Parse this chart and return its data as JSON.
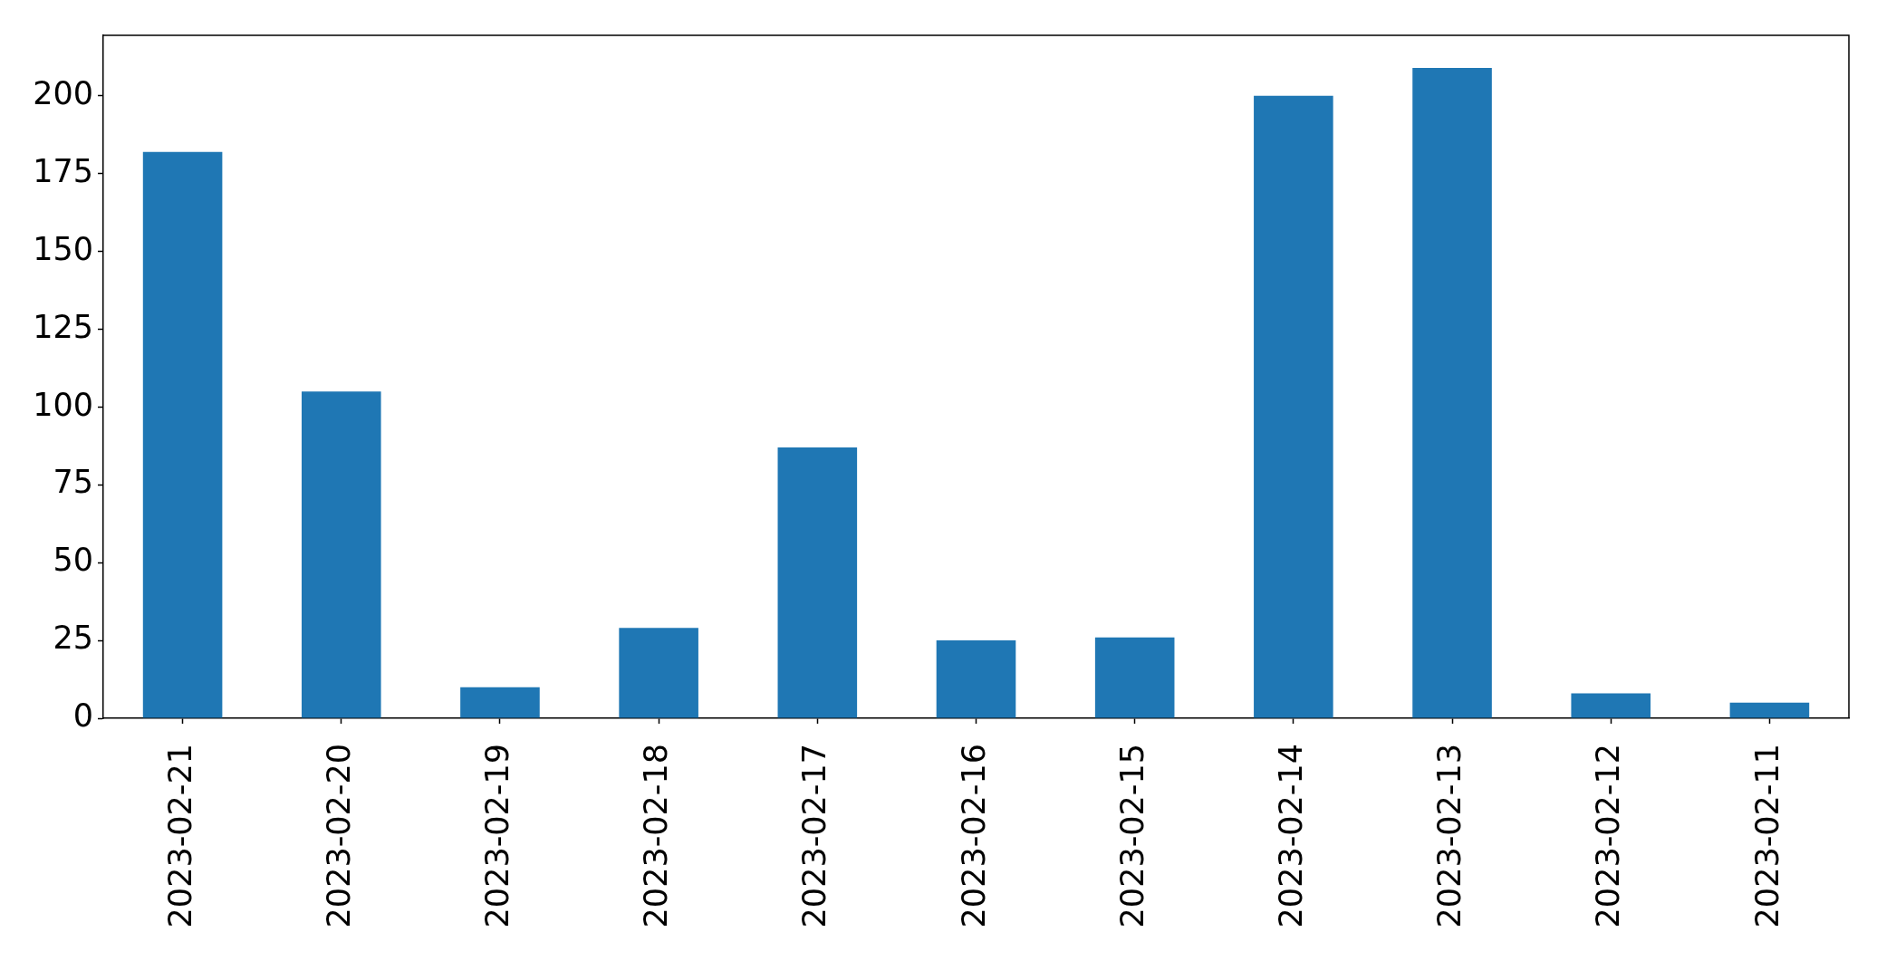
{
  "chart_data": {
    "type": "bar",
    "categories": [
      "2023-02-21",
      "2023-02-20",
      "2023-02-19",
      "2023-02-18",
      "2023-02-17",
      "2023-02-16",
      "2023-02-15",
      "2023-02-14",
      "2023-02-13",
      "2023-02-12",
      "2023-02-11"
    ],
    "values": [
      182,
      105,
      10,
      29,
      87,
      25,
      26,
      200,
      209,
      8,
      5
    ],
    "color": "#1f77b4",
    "ylim": [
      0,
      219.45
    ],
    "yticks": [
      0,
      25,
      50,
      75,
      100,
      125,
      150,
      175,
      200
    ]
  }
}
